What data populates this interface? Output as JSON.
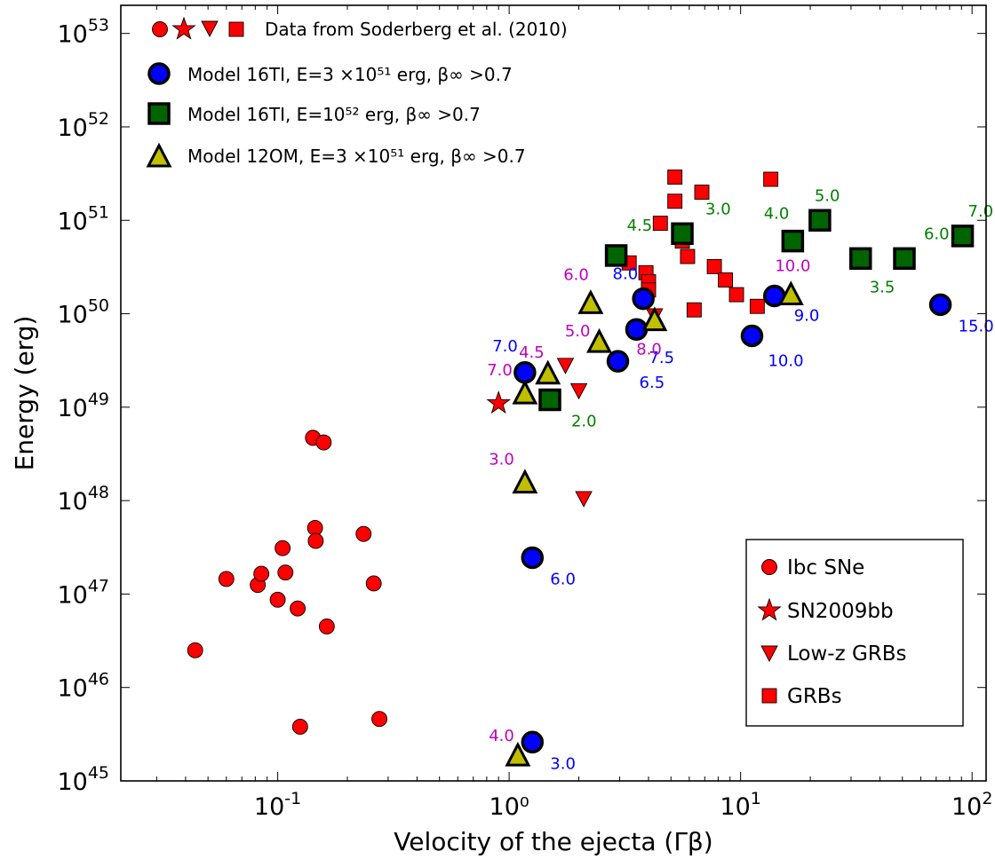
{
  "chart_data": {
    "type": "scatter",
    "xlabel": "Velocity of the ejecta (Γβ)",
    "ylabel": "Energy (erg)",
    "xscale": "log",
    "yscale": "log",
    "xlim": [
      0.021,
      115
    ],
    "ylim": [
      1e+45,
      2e+53
    ],
    "xticks": [
      {
        "value": 0.1,
        "base": "10",
        "exp": "-1"
      },
      {
        "value": 1,
        "label": "10⁰"
      },
      {
        "value": 10,
        "base": "10",
        "exp": "1"
      },
      {
        "value": 100,
        "base": "10",
        "exp": "2"
      }
    ],
    "yticks": [
      {
        "value": 1e+45,
        "base": "10",
        "exp": "45"
      },
      {
        "value": 1e+46,
        "base": "10",
        "exp": "46"
      },
      {
        "value": 1e+47,
        "base": "10",
        "exp": "47"
      },
      {
        "value": 1e+48,
        "base": "10",
        "exp": "48"
      },
      {
        "value": 1e+49,
        "base": "10",
        "exp": "49"
      },
      {
        "value": 1e+50,
        "base": "10",
        "exp": "50"
      },
      {
        "value": 1e+51,
        "base": "10",
        "exp": "51"
      },
      {
        "value": 1e+52,
        "base": "10",
        "exp": "52"
      },
      {
        "value": 1e+53,
        "base": "10",
        "exp": "53"
      }
    ],
    "legend_top": {
      "placement": "top-left",
      "entries": [
        {
          "label": "Data from Soderberg et al. (2010)"
        },
        {
          "label": "Model 16TI, E=3 ×10⁵¹ erg, β∞ >0.7"
        },
        {
          "label": "Model 16TI, E=10⁵² erg, β∞ >0.7"
        },
        {
          "label": "Model 12OM, E=3 ×10⁵¹ erg, β∞ >0.7"
        }
      ]
    },
    "legend_bottom": {
      "placement": "lower-right",
      "entries": [
        {
          "label": "Ibc SNe",
          "marker": "circle"
        },
        {
          "label": "SN2009bb",
          "marker": "star"
        },
        {
          "label": "Low-z GRBs",
          "marker": "triangle-down"
        },
        {
          "label": "GRBs",
          "marker": "square"
        }
      ]
    },
    "colors": {
      "data": "#ff0000",
      "model16_3e51": "#0000ff",
      "model16_1e52": "#006400",
      "model12om": "#bfbf00",
      "label_blue": "#0000ff",
      "label_green": "#008000",
      "label_magenta": "#bf00bf"
    },
    "series": [
      {
        "name": "Ibc SNe",
        "marker": "circle",
        "points": [
          [
            0.044,
            2.5e+46
          ],
          [
            0.06,
            1.45e+47
          ],
          [
            0.082,
            1.25e+47
          ],
          [
            0.085,
            1.65e+47
          ],
          [
            0.1,
            8.7e+46
          ],
          [
            0.105,
            3.1e+47
          ],
          [
            0.108,
            1.7e+47
          ],
          [
            0.122,
            7e+46
          ],
          [
            0.125,
            3.8e+45
          ],
          [
            0.142,
            4.7e+48
          ],
          [
            0.145,
            5.1e+47
          ],
          [
            0.146,
            3.7e+47
          ],
          [
            0.158,
            4.2e+48
          ],
          [
            0.163,
            4.5e+46
          ],
          [
            0.235,
            4.4e+47
          ],
          [
            0.26,
            1.3e+47
          ],
          [
            0.275,
            4.6e+45
          ]
        ]
      },
      {
        "name": "SN2009bb",
        "marker": "star",
        "points": [
          [
            0.9,
            1.1e+49
          ]
        ]
      },
      {
        "name": "Low-z GRBs",
        "marker": "triangle-down",
        "points": [
          [
            1.75,
            2.8e+49
          ],
          [
            2.0,
            1.5e+49
          ],
          [
            2.1,
            1.05e+48
          ],
          [
            4.25,
            9.5e+49
          ]
        ]
      },
      {
        "name": "GRBs",
        "marker": "square",
        "points": [
          [
            5.2,
            2.9e+51
          ],
          [
            5.2,
            1.6e+51
          ],
          [
            6.8,
            2e+51
          ],
          [
            13.5,
            2.75e+51
          ],
          [
            4.5,
            9.3e+50
          ],
          [
            5.6,
            6e+50
          ],
          [
            5.9,
            4.1e+50
          ],
          [
            3.3,
            3.5e+50
          ],
          [
            3.9,
            2.75e+50
          ],
          [
            4.0,
            2.2e+50
          ],
          [
            4.0,
            1.8e+50
          ],
          [
            7.7,
            3.2e+50
          ],
          [
            8.6,
            2.3e+50
          ],
          [
            9.6,
            1.6e+50
          ],
          [
            11.8,
            1.2e+50
          ],
          [
            6.3,
            1.1e+50
          ]
        ]
      },
      {
        "name": "Model 16TI, E=3 ×10⁵¹ erg, β∞ >0.7",
        "marker": "circle-big",
        "points": [
          {
            "x": 1.17,
            "y": 2.35e+49,
            "label": "7.0"
          },
          {
            "x": 1.26,
            "y": 2.45e+47,
            "label": "6.0"
          },
          {
            "x": 1.26,
            "y": 2.6e+45,
            "label": "3.0"
          },
          {
            "x": 2.95,
            "y": 3.1e+49,
            "label": "6.5"
          },
          {
            "x": 3.55,
            "y": 6.8e+49,
            "label": "7.5"
          },
          {
            "x": 3.8,
            "y": 1.45e+50,
            "label": "8.0"
          },
          {
            "x": 11.2,
            "y": 5.8e+49,
            "label": "10.0"
          },
          {
            "x": 14.0,
            "y": 1.55e+50,
            "label": "9.0"
          },
          {
            "x": 73.0,
            "y": 1.25e+50,
            "label": "15.0"
          }
        ]
      },
      {
        "name": "Model 16TI, E=10⁵² erg, β∞ >0.7",
        "marker": "square-big",
        "points": [
          {
            "x": 1.5,
            "y": 1.2e+49,
            "label": "2.0"
          },
          {
            "x": 2.9,
            "y": 4.2e+50,
            "label": "4.5"
          },
          {
            "x": 5.6,
            "y": 7.2e+50,
            "label": "3.0"
          },
          {
            "x": 16.8,
            "y": 6e+50,
            "label": "4.0"
          },
          {
            "x": 22.0,
            "y": 1e+51,
            "label": "5.0"
          },
          {
            "x": 33.0,
            "y": 3.9e+50,
            "label": "3.5"
          },
          {
            "x": 51.0,
            "y": 3.9e+50,
            "label": "6.0"
          },
          {
            "x": 91.0,
            "y": 6.8e+50,
            "label": "7.0"
          }
        ]
      },
      {
        "name": "Model 12OM, E=3 ×10⁵¹ erg, β∞ >0.7",
        "marker": "triangle-up",
        "points": [
          {
            "x": 1.09,
            "y": 1.8e+45,
            "label": "4.0"
          },
          {
            "x": 1.17,
            "y": 1.5e+48,
            "label": "3.0"
          },
          {
            "x": 1.17,
            "y": 1.35e+49,
            "label": "7.0"
          },
          {
            "x": 1.47,
            "y": 2.2e+49,
            "label": "4.5"
          },
          {
            "x": 2.25,
            "y": 1.25e+50,
            "label": "6.0"
          },
          {
            "x": 2.45,
            "y": 4.8e+49,
            "label": "5.0"
          },
          {
            "x": 4.25,
            "y": 8.2e+49,
            "label": "8.0"
          },
          {
            "x": 16.5,
            "y": 1.55e+50,
            "label": "10.0"
          }
        ]
      }
    ]
  }
}
